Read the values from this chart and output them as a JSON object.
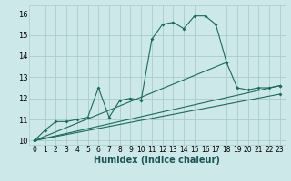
{
  "background_color": "#cce8e8",
  "grid_color": "#aacccc",
  "line_color": "#1a6b5a",
  "xlabel": "Humidex (Indice chaleur)",
  "xlabel_fontsize": 7,
  "xlim": [
    -0.5,
    23.5
  ],
  "ylim": [
    9.8,
    16.4
  ],
  "xticks": [
    0,
    1,
    2,
    3,
    4,
    5,
    6,
    7,
    8,
    9,
    10,
    11,
    12,
    13,
    14,
    15,
    16,
    17,
    18,
    19,
    20,
    21,
    22,
    23
  ],
  "yticks": [
    10,
    11,
    12,
    13,
    14,
    15,
    16
  ],
  "series1_x": [
    0,
    1,
    2,
    3,
    4,
    5,
    6,
    7,
    8,
    9,
    10,
    11,
    12,
    13,
    14,
    15,
    16,
    17,
    18,
    19,
    20,
    21,
    22,
    23
  ],
  "series1_y": [
    10.0,
    10.5,
    10.9,
    10.9,
    11.0,
    11.1,
    12.5,
    11.1,
    11.9,
    12.0,
    11.9,
    14.8,
    15.5,
    15.6,
    15.3,
    15.9,
    15.9,
    15.5,
    13.7,
    12.5,
    12.4,
    12.5,
    12.5,
    12.6
  ],
  "series2_x": [
    0,
    23
  ],
  "series2_y": [
    10.0,
    12.6
  ],
  "series3_x": [
    0,
    23
  ],
  "series3_y": [
    10.0,
    12.2
  ],
  "series4_x": [
    0,
    18
  ],
  "series4_y": [
    10.0,
    13.7
  ]
}
